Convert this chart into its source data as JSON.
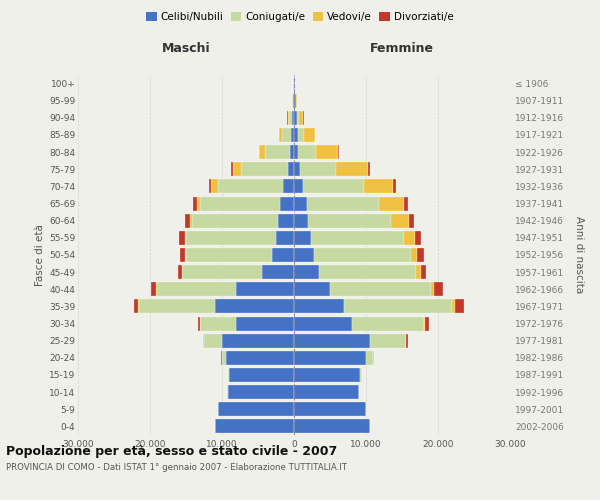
{
  "age_groups": [
    "0-4",
    "5-9",
    "10-14",
    "15-19",
    "20-24",
    "25-29",
    "30-34",
    "35-39",
    "40-44",
    "45-49",
    "50-54",
    "55-59",
    "60-64",
    "65-69",
    "70-74",
    "75-79",
    "80-84",
    "85-89",
    "90-94",
    "95-99",
    "100+"
  ],
  "birth_years": [
    "2002-2006",
    "1997-2001",
    "1992-1996",
    "1987-1991",
    "1982-1986",
    "1977-1981",
    "1972-1976",
    "1967-1971",
    "1962-1966",
    "1957-1961",
    "1952-1956",
    "1947-1951",
    "1942-1946",
    "1937-1941",
    "1932-1936",
    "1927-1931",
    "1922-1926",
    "1917-1921",
    "1912-1916",
    "1907-1911",
    "≤ 1906"
  ],
  "males": {
    "celibi": [
      11000,
      10500,
      9200,
      9000,
      9500,
      10000,
      8000,
      11000,
      8000,
      4500,
      3000,
      2500,
      2200,
      2000,
      1500,
      800,
      500,
      400,
      300,
      150,
      50
    ],
    "coniugati": [
      10,
      20,
      50,
      100,
      500,
      2500,
      5000,
      10500,
      11000,
      11000,
      12000,
      12500,
      12000,
      11000,
      9000,
      6500,
      3500,
      1200,
      400,
      100,
      30
    ],
    "vedovi": [
      5,
      5,
      10,
      20,
      50,
      100,
      100,
      150,
      150,
      100,
      100,
      200,
      300,
      500,
      1000,
      1200,
      800,
      500,
      200,
      50,
      5
    ],
    "divorziati": [
      5,
      5,
      10,
      20,
      50,
      100,
      300,
      600,
      700,
      500,
      700,
      800,
      600,
      500,
      300,
      200,
      100,
      50,
      30,
      10,
      2
    ]
  },
  "females": {
    "nubili": [
      10500,
      10000,
      9000,
      9200,
      10000,
      10500,
      8000,
      7000,
      5000,
      3500,
      2800,
      2300,
      2000,
      1800,
      1200,
      800,
      600,
      500,
      400,
      250,
      80
    ],
    "coniugate": [
      10,
      20,
      50,
      200,
      1000,
      5000,
      10000,
      15000,
      14000,
      13500,
      13500,
      13000,
      11500,
      10000,
      8500,
      5000,
      2500,
      900,
      300,
      80,
      20
    ],
    "vedove": [
      5,
      5,
      10,
      20,
      50,
      100,
      200,
      400,
      500,
      600,
      800,
      1500,
      2500,
      3500,
      4000,
      4500,
      3000,
      1500,
      600,
      100,
      10
    ],
    "divorziate": [
      5,
      5,
      10,
      20,
      50,
      200,
      600,
      1200,
      1200,
      700,
      900,
      900,
      700,
      600,
      400,
      250,
      150,
      80,
      40,
      15,
      2
    ]
  },
  "colors": {
    "celibi": "#4472c4",
    "coniugati": "#c5d9a0",
    "vedovi": "#f0c040",
    "divorziati": "#c0392b"
  },
  "title": "Popolazione per età, sesso e stato civile - 2007",
  "subtitle": "PROVINCIA DI COMO - Dati ISTAT 1° gennaio 2007 - Elaborazione TUTTITALIA.IT",
  "xlabel_left": "Maschi",
  "xlabel_right": "Femmine",
  "ylabel_left": "Fasce di età",
  "ylabel_right": "Anni di nascita",
  "xlim": 30000,
  "background_color": "#f0f0eb",
  "grid_color": "#cccccc",
  "tick_vals": [
    -30000,
    -20000,
    -10000,
    0,
    10000,
    20000,
    30000
  ],
  "tick_labels": [
    "30.000",
    "20.000",
    "10.000",
    "0",
    "10.000",
    "20.000",
    "30.000"
  ]
}
